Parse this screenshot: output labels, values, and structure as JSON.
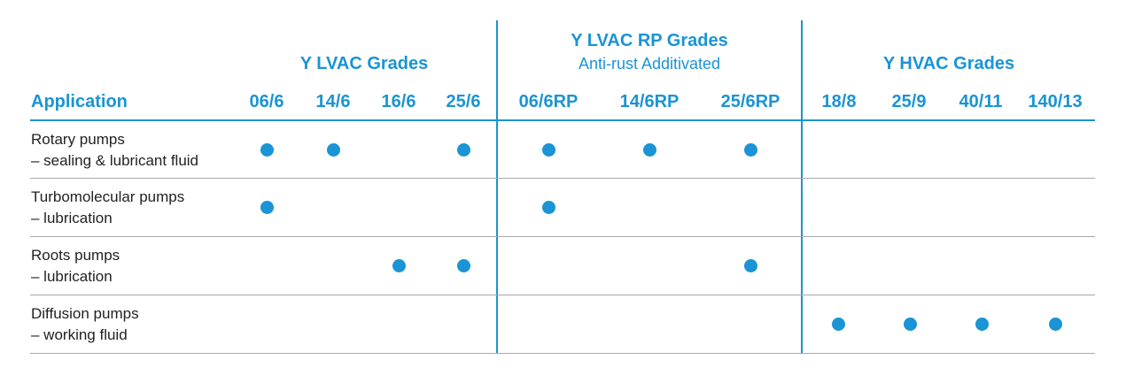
{
  "colors": {
    "accent": "#1a94d4",
    "text": "#222222",
    "divider": "#a9a9a9"
  },
  "groups": [
    {
      "title": "Y LVAC Grades",
      "subtitle": ""
    },
    {
      "title": "Y LVAC RP Grades",
      "subtitle": "Anti-rust Additivated"
    },
    {
      "title": "Y HVAC Grades",
      "subtitle": ""
    }
  ],
  "application_header": "Application",
  "columns": [
    {
      "label": "06/6",
      "group": 0
    },
    {
      "label": "14/6",
      "group": 0
    },
    {
      "label": "16/6",
      "group": 0
    },
    {
      "label": "25/6",
      "group": 0
    },
    {
      "label": "06/6RP",
      "group": 1
    },
    {
      "label": "14/6RP",
      "group": 1
    },
    {
      "label": "25/6RP",
      "group": 1
    },
    {
      "label": "18/8",
      "group": 2
    },
    {
      "label": "25/9",
      "group": 2
    },
    {
      "label": "40/11",
      "group": 2
    },
    {
      "label": "140/13",
      "group": 2
    }
  ],
  "rows": [
    {
      "name": "Rotary pumps",
      "detail": "– sealing & lubricant fluid",
      "marks": [
        true,
        true,
        false,
        true,
        true,
        true,
        true,
        false,
        false,
        false,
        false
      ]
    },
    {
      "name": "Turbomolecular pumps",
      "detail": "– lubrication",
      "marks": [
        true,
        false,
        false,
        false,
        true,
        false,
        false,
        false,
        false,
        false,
        false
      ]
    },
    {
      "name": "Roots pumps",
      "detail": "– lubrication",
      "marks": [
        false,
        false,
        true,
        true,
        false,
        false,
        true,
        false,
        false,
        false,
        false
      ]
    },
    {
      "name": "Diffusion pumps",
      "detail": "– working fluid",
      "marks": [
        false,
        false,
        false,
        false,
        false,
        false,
        false,
        true,
        true,
        true,
        true
      ]
    }
  ]
}
